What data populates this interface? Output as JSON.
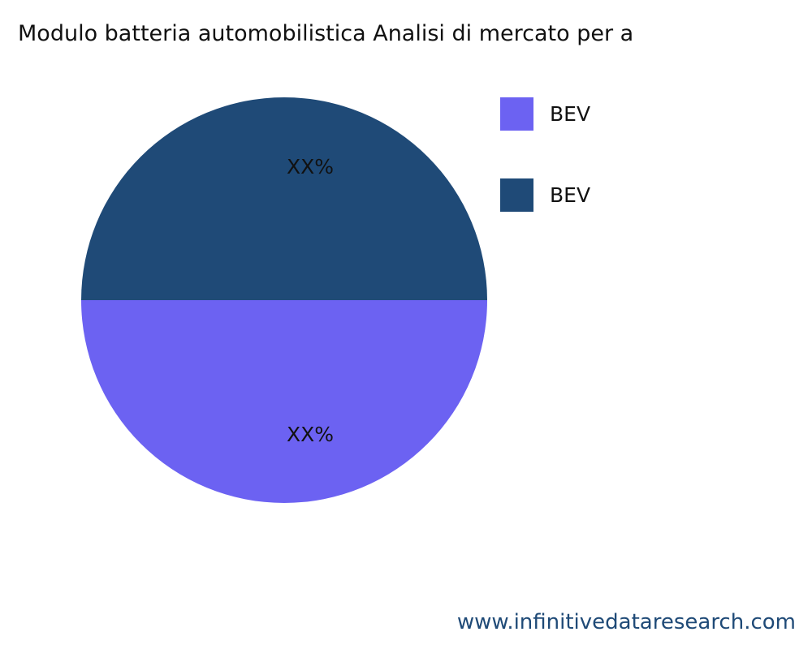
{
  "chart_data": {
    "type": "pie",
    "title": "Modulo batteria automobilistica Analisi di mercato per a",
    "slices": [
      {
        "label": "BEV",
        "value": 50,
        "data_label": "XX%",
        "color": "#6c62f2"
      },
      {
        "label": "BEV",
        "value": 50,
        "data_label": "XX%",
        "color": "#1f4a77"
      }
    ],
    "legend_position": "right"
  },
  "footer": "www.infinitivedataresearch.com"
}
